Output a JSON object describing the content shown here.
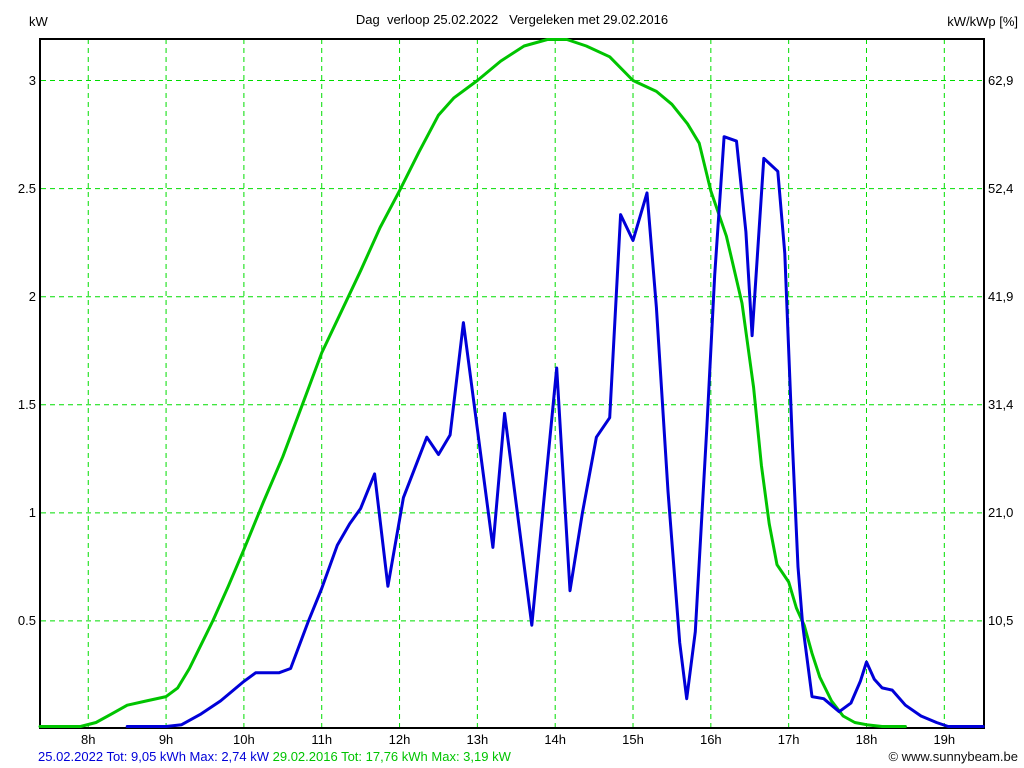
{
  "header": {
    "title": "Dag  verloop 25.02.2022   Vergeleken met 29.02.2016",
    "left_unit": "kW",
    "right_unit": "kW/kWp [%]"
  },
  "footer": {
    "legend_2022": "25.02.2022 Tot: 9,05 kWh Max: 2,74 kW",
    "legend_2016": "29.02.2016 Tot: 17,76 kWh Max: 3,19 kW",
    "copyright": "© www.sunnybeam.be"
  },
  "colors": {
    "series_2022": "#0000d8",
    "series_2016": "#00c400",
    "grid": "#00dd00",
    "axis": "#000000",
    "background": "#ffffff"
  },
  "chart_data": {
    "type": "line",
    "title": "Dag  verloop 25.02.2022   Vergeleken met 29.02.2016",
    "grid": true,
    "x_axis": {
      "unit": "hour of day",
      "range": [
        7.38,
        19.51
      ],
      "tick_hours": [
        8,
        9,
        10,
        11,
        12,
        13,
        14,
        15,
        16,
        17,
        18,
        19
      ],
      "tick_labels": [
        "8h",
        "9h",
        "10h",
        "11h",
        "12h",
        "13h",
        "14h",
        "15h",
        "16h",
        "17h",
        "18h",
        "19h"
      ]
    },
    "y_axis_left": {
      "label": "kW",
      "range": [
        0,
        3.2
      ],
      "tick_values": [
        0.5,
        1,
        1.5,
        2,
        2.5,
        3
      ],
      "tick_labels": [
        "0.5",
        "1",
        "1.5",
        "2",
        "2.5",
        "3"
      ]
    },
    "y_axis_right": {
      "label": "kW/kWp [%]",
      "tick_labels": [
        "10,5",
        "21,0",
        "31,4",
        "41,9",
        "52,4",
        "62,9"
      ]
    },
    "series": [
      {
        "name": "29.02.2016",
        "color": "#00c400",
        "total": "17,76 kWh",
        "max": "3,19 kW",
        "points": [
          [
            7.38,
            0.01
          ],
          [
            7.9,
            0.01
          ],
          [
            8.1,
            0.03
          ],
          [
            8.3,
            0.07
          ],
          [
            8.5,
            0.11
          ],
          [
            8.75,
            0.13
          ],
          [
            9.0,
            0.15
          ],
          [
            9.15,
            0.19
          ],
          [
            9.3,
            0.28
          ],
          [
            9.45,
            0.39
          ],
          [
            9.6,
            0.5
          ],
          [
            9.8,
            0.66
          ],
          [
            10.0,
            0.83
          ],
          [
            10.25,
            1.05
          ],
          [
            10.5,
            1.26
          ],
          [
            10.75,
            1.5
          ],
          [
            11.0,
            1.74
          ],
          [
            11.25,
            1.93
          ],
          [
            11.5,
            2.12
          ],
          [
            11.75,
            2.32
          ],
          [
            12.0,
            2.49
          ],
          [
            12.25,
            2.67
          ],
          [
            12.5,
            2.84
          ],
          [
            12.7,
            2.92
          ],
          [
            13.0,
            3.0
          ],
          [
            13.3,
            3.09
          ],
          [
            13.6,
            3.16
          ],
          [
            13.9,
            3.19
          ],
          [
            14.15,
            3.19
          ],
          [
            14.4,
            3.16
          ],
          [
            14.7,
            3.11
          ],
          [
            15.0,
            3.0
          ],
          [
            15.3,
            2.95
          ],
          [
            15.5,
            2.89
          ],
          [
            15.7,
            2.8
          ],
          [
            15.85,
            2.71
          ],
          [
            16.0,
            2.49
          ],
          [
            16.2,
            2.28
          ],
          [
            16.4,
            1.97
          ],
          [
            16.55,
            1.58
          ],
          [
            16.65,
            1.22
          ],
          [
            16.75,
            0.95
          ],
          [
            16.85,
            0.76
          ],
          [
            17.0,
            0.68
          ],
          [
            17.1,
            0.56
          ],
          [
            17.2,
            0.48
          ],
          [
            17.3,
            0.35
          ],
          [
            17.4,
            0.24
          ],
          [
            17.55,
            0.13
          ],
          [
            17.7,
            0.06
          ],
          [
            17.85,
            0.03
          ],
          [
            18.0,
            0.02
          ],
          [
            18.2,
            0.01
          ],
          [
            18.5,
            0.01
          ]
        ]
      },
      {
        "name": "25.02.2022",
        "color": "#0000d8",
        "total": "9,05 kWh",
        "max": "2,74 kW",
        "points": [
          [
            8.5,
            0.01
          ],
          [
            9.0,
            0.01
          ],
          [
            9.2,
            0.02
          ],
          [
            9.45,
            0.07
          ],
          [
            9.7,
            0.13
          ],
          [
            10.0,
            0.22
          ],
          [
            10.15,
            0.26
          ],
          [
            10.45,
            0.26
          ],
          [
            10.6,
            0.28
          ],
          [
            10.83,
            0.5
          ],
          [
            11.0,
            0.65
          ],
          [
            11.2,
            0.85
          ],
          [
            11.36,
            0.95
          ],
          [
            11.5,
            1.02
          ],
          [
            11.68,
            1.18
          ],
          [
            11.85,
            0.66
          ],
          [
            12.05,
            1.07
          ],
          [
            12.35,
            1.35
          ],
          [
            12.5,
            1.27
          ],
          [
            12.65,
            1.36
          ],
          [
            12.82,
            1.88
          ],
          [
            13.2,
            0.84
          ],
          [
            13.35,
            1.46
          ],
          [
            13.7,
            0.48
          ],
          [
            14.02,
            1.67
          ],
          [
            14.19,
            0.64
          ],
          [
            14.35,
            1.0
          ],
          [
            14.53,
            1.35
          ],
          [
            14.7,
            1.44
          ],
          [
            14.84,
            2.38
          ],
          [
            15.0,
            2.26
          ],
          [
            15.18,
            2.48
          ],
          [
            15.3,
            1.95
          ],
          [
            15.45,
            1.1
          ],
          [
            15.6,
            0.4
          ],
          [
            15.69,
            0.14
          ],
          [
            15.8,
            0.45
          ],
          [
            15.95,
            1.4
          ],
          [
            16.05,
            2.1
          ],
          [
            16.17,
            2.74
          ],
          [
            16.33,
            2.72
          ],
          [
            16.45,
            2.3
          ],
          [
            16.53,
            1.82
          ],
          [
            16.68,
            2.64
          ],
          [
            16.86,
            2.58
          ],
          [
            16.95,
            2.2
          ],
          [
            17.05,
            1.3
          ],
          [
            17.12,
            0.75
          ],
          [
            17.18,
            0.48
          ],
          [
            17.3,
            0.15
          ],
          [
            17.45,
            0.14
          ],
          [
            17.65,
            0.08
          ],
          [
            17.8,
            0.12
          ],
          [
            17.92,
            0.22
          ],
          [
            18.0,
            0.31
          ],
          [
            18.1,
            0.23
          ],
          [
            18.2,
            0.19
          ],
          [
            18.33,
            0.18
          ],
          [
            18.5,
            0.11
          ],
          [
            18.7,
            0.06
          ],
          [
            18.9,
            0.03
          ],
          [
            19.05,
            0.01
          ],
          [
            19.5,
            0.01
          ]
        ]
      }
    ]
  }
}
